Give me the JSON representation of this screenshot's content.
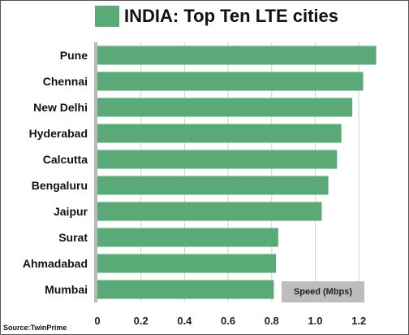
{
  "title": "INDIA:  Top Ten LTE cities",
  "source": "Source:TwinPrime",
  "colors": {
    "bar": "#5aaa77",
    "axis_panel": "#b8b8b8",
    "grid": "#d0d0d0",
    "speed_box": "#bdbdbd"
  },
  "chart_data": {
    "type": "bar",
    "orientation": "horizontal",
    "categories": [
      "Pune",
      "Chennai",
      "New Delhi",
      "Hyderabad",
      "Calcutta",
      "Bengaluru",
      "Jaipur",
      "Surat",
      "Ahmadabad",
      "Mumbai"
    ],
    "values": [
      1.28,
      1.22,
      1.17,
      1.12,
      1.1,
      1.06,
      1.03,
      0.83,
      0.82,
      0.81
    ],
    "xlabel": "Speed (Mbps)",
    "xlim": [
      0,
      1.3
    ],
    "xticks": [
      "0",
      "0.2",
      "0.4",
      "0.6",
      "0.8",
      "1.0",
      "1.2"
    ],
    "grid": true
  }
}
